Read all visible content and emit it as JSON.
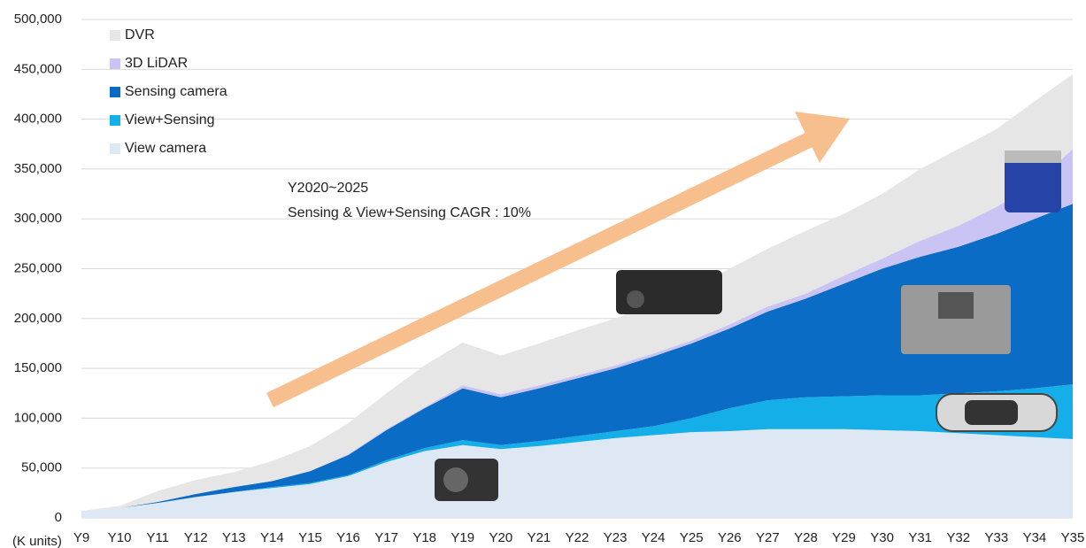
{
  "chart_data": {
    "type": "stacked_area",
    "unit_label": "(K units)",
    "annotation": [
      "Y2020~2025",
      "Sensing & View+Sensing CAGR : 10%"
    ],
    "categories": [
      "Y9",
      "Y10",
      "Y11",
      "Y12",
      "Y13",
      "Y14",
      "Y15",
      "Y16",
      "Y17",
      "Y18",
      "Y19",
      "Y20",
      "Y21",
      "Y22",
      "Y23",
      "Y24",
      "Y25",
      "Y26",
      "Y27",
      "Y28",
      "Y29",
      "Y30",
      "Y31",
      "Y32",
      "Y33",
      "Y34",
      "Y35"
    ],
    "series": [
      {
        "name": "View camera",
        "color": "#dde8f4",
        "values": [
          7000,
          10000,
          15000,
          21000,
          26000,
          30000,
          34000,
          42000,
          56000,
          67000,
          73000,
          69000,
          72000,
          76000,
          80000,
          83000,
          86000,
          87000,
          89000,
          89000,
          89000,
          88000,
          87000,
          85000,
          83000,
          81000,
          79000
        ]
      },
      {
        "name": "View+Sensing",
        "color": "#14aee8",
        "values": [
          0,
          0,
          0,
          0,
          0,
          1000,
          1000,
          1000,
          2000,
          3000,
          5000,
          4000,
          5000,
          6000,
          7000,
          9000,
          14000,
          23000,
          29000,
          32000,
          33000,
          35000,
          36000,
          40000,
          44000,
          49000,
          55000
        ]
      },
      {
        "name": "Sensing camera",
        "color": "#0a6cc4",
        "values": [
          0,
          0,
          1000,
          3000,
          5000,
          6000,
          12000,
          20000,
          30000,
          40000,
          52000,
          48000,
          53000,
          58000,
          63000,
          70000,
          75000,
          80000,
          89000,
          99000,
          113000,
          127000,
          139000,
          147000,
          158000,
          170000,
          181000
        ]
      },
      {
        "name": "3D LiDAR",
        "color": "#c9c4f4",
        "values": [
          0,
          0,
          0,
          0,
          0,
          0,
          0,
          1000,
          1000,
          1000,
          3000,
          3000,
          3000,
          3000,
          3000,
          3000,
          3000,
          4000,
          5000,
          5000,
          8000,
          10000,
          16000,
          21000,
          27000,
          35000,
          55000
        ]
      },
      {
        "name": "DVR",
        "color": "#e6e6e6",
        "values": [
          0,
          2000,
          11000,
          14000,
          15000,
          20000,
          25000,
          31000,
          36000,
          42000,
          43000,
          39000,
          42000,
          45000,
          47000,
          50000,
          52000,
          56000,
          58000,
          63000,
          62000,
          65000,
          72000,
          77000,
          78000,
          83000,
          75000
        ]
      }
    ],
    "ylim": [
      0,
      500000
    ],
    "yticks": [
      0,
      {
        "value": 50000,
        "label": "50,000"
      },
      {
        "value": 100000,
        "label": "100,000"
      },
      {
        "value": 150000,
        "label": "150,000"
      },
      {
        "value": 200000,
        "label": "200,000"
      },
      {
        "value": 250000,
        "label": "250,000"
      },
      {
        "value": 300000,
        "label": "300,000"
      },
      {
        "value": 350000,
        "label": "350,000"
      },
      {
        "value": 400000,
        "label": "400,000"
      },
      {
        "value": 450000,
        "label": "450,000"
      },
      {
        "value": {
          "value": 500000,
          "label": "500,000"
        },
        "label": "500,000"
      }
    ],
    "grid": true
  }
}
